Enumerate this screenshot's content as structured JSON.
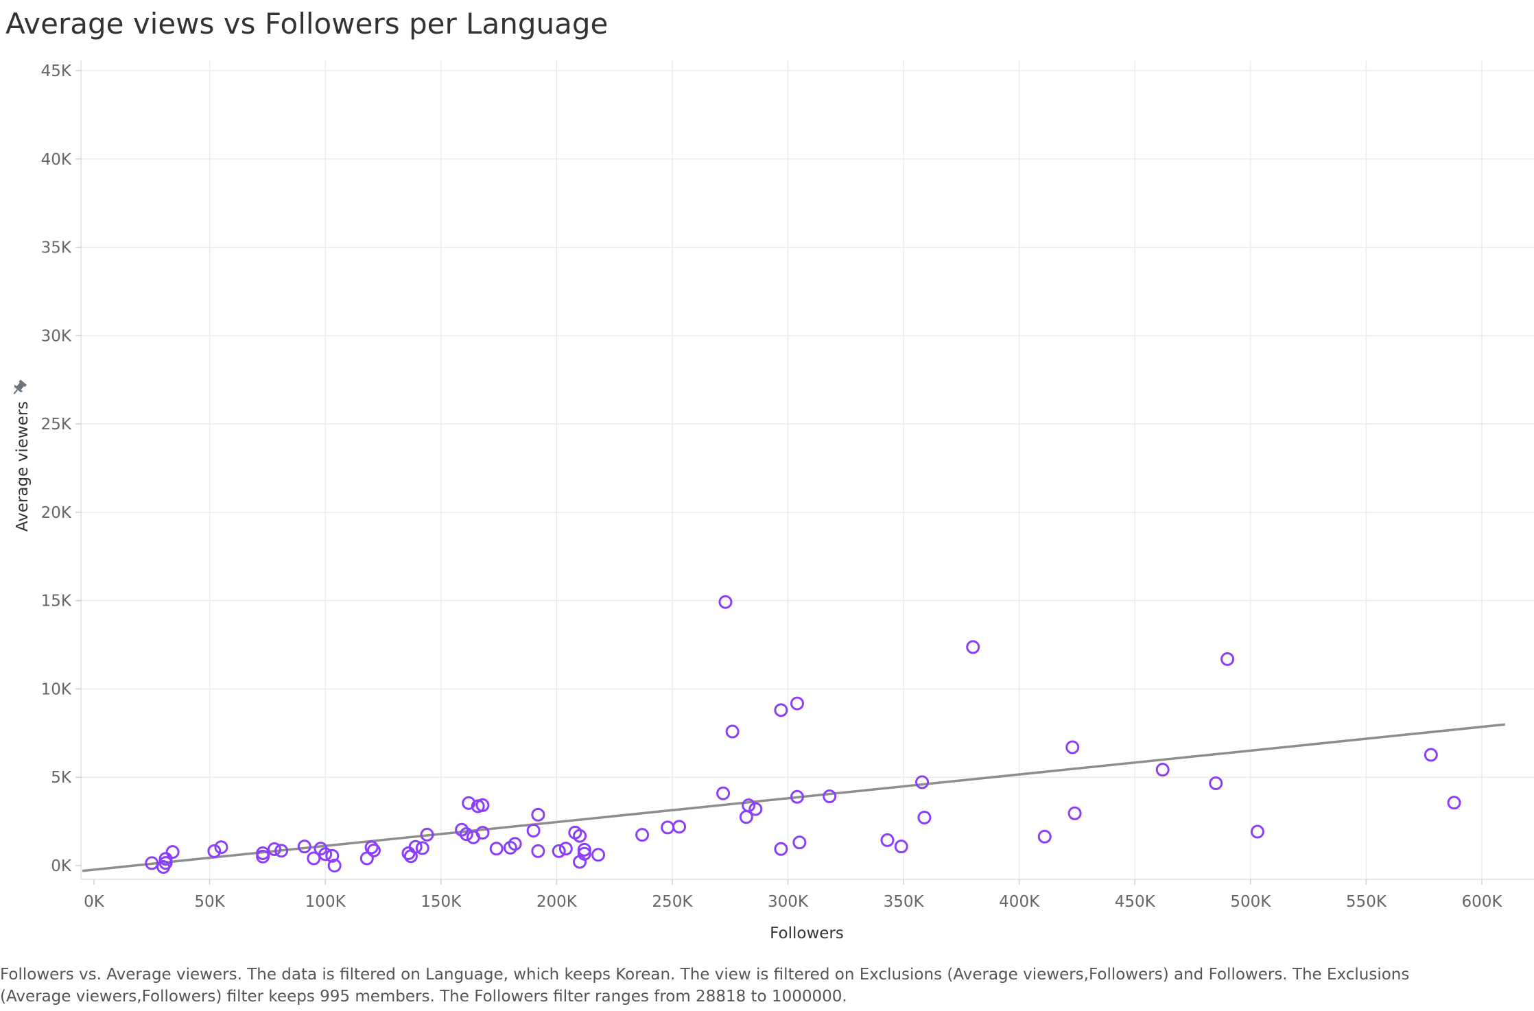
{
  "title": "Average views vs Followers per Language",
  "caption": "Followers vs. Average viewers. The data is filtered on Language, which keeps Korean. The view is filtered on Exclusions (Average viewers,Followers) and Followers. The Exclusions (Average viewers,Followers) filter keeps 995 members. The Followers filter ranges from 28818 to 1000000.",
  "pin_icon": "pin-icon",
  "colors": {
    "point": "#8A3FFC",
    "trend": "#8E8E8E",
    "grid": "#EBEBEB",
    "tick": "#666666"
  },
  "chart_data": {
    "type": "scatter",
    "title": "Average views vs Followers per Language",
    "xlabel": "Followers",
    "ylabel": "Average viewers",
    "xlim": [
      0,
      610000
    ],
    "ylim": [
      -700,
      45000
    ],
    "x_ticks": [
      0,
      50000,
      100000,
      150000,
      200000,
      250000,
      300000,
      350000,
      400000,
      450000,
      500000,
      550000,
      600000
    ],
    "x_tick_labels": [
      "0K",
      "50K",
      "100K",
      "150K",
      "200K",
      "250K",
      "300K",
      "350K",
      "400K",
      "450K",
      "500K",
      "550K",
      "600K"
    ],
    "y_ticks": [
      0,
      5000,
      10000,
      15000,
      20000,
      25000,
      30000,
      35000,
      40000,
      45000
    ],
    "y_tick_labels": [
      "0K",
      "5K",
      "10K",
      "15K",
      "20K",
      "25K",
      "30K",
      "35K",
      "40K",
      "45K"
    ],
    "grid": true,
    "trend_line": {
      "x": [
        -5000,
        610000
      ],
      "y": [
        -300,
        7990
      ]
    },
    "points": [
      {
        "x": 25000,
        "y": 140
      },
      {
        "x": 30000,
        "y": -80
      },
      {
        "x": 31000,
        "y": 380
      },
      {
        "x": 31000,
        "y": 150
      },
      {
        "x": 34000,
        "y": 770
      },
      {
        "x": 52000,
        "y": 820
      },
      {
        "x": 55000,
        "y": 1040
      },
      {
        "x": 73000,
        "y": 510
      },
      {
        "x": 73000,
        "y": 700
      },
      {
        "x": 78000,
        "y": 930
      },
      {
        "x": 81000,
        "y": 840
      },
      {
        "x": 91000,
        "y": 1080
      },
      {
        "x": 95000,
        "y": 410
      },
      {
        "x": 98000,
        "y": 960
      },
      {
        "x": 100000,
        "y": 650
      },
      {
        "x": 103000,
        "y": 550
      },
      {
        "x": 104000,
        "y": 0
      },
      {
        "x": 118000,
        "y": 410
      },
      {
        "x": 120000,
        "y": 1030
      },
      {
        "x": 121000,
        "y": 860
      },
      {
        "x": 136000,
        "y": 700
      },
      {
        "x": 137000,
        "y": 530
      },
      {
        "x": 139000,
        "y": 1060
      },
      {
        "x": 142000,
        "y": 990
      },
      {
        "x": 144000,
        "y": 1750
      },
      {
        "x": 159000,
        "y": 2030
      },
      {
        "x": 161000,
        "y": 1780
      },
      {
        "x": 162000,
        "y": 3540
      },
      {
        "x": 164000,
        "y": 1600
      },
      {
        "x": 166000,
        "y": 3360
      },
      {
        "x": 168000,
        "y": 3420
      },
      {
        "x": 168000,
        "y": 1860
      },
      {
        "x": 174000,
        "y": 960
      },
      {
        "x": 180000,
        "y": 1010
      },
      {
        "x": 182000,
        "y": 1230
      },
      {
        "x": 190000,
        "y": 1980
      },
      {
        "x": 192000,
        "y": 2880
      },
      {
        "x": 192000,
        "y": 820
      },
      {
        "x": 201000,
        "y": 820
      },
      {
        "x": 204000,
        "y": 960
      },
      {
        "x": 208000,
        "y": 1870
      },
      {
        "x": 210000,
        "y": 1680
      },
      {
        "x": 210000,
        "y": 210
      },
      {
        "x": 212000,
        "y": 900
      },
      {
        "x": 212000,
        "y": 670
      },
      {
        "x": 218000,
        "y": 610
      },
      {
        "x": 237000,
        "y": 1740
      },
      {
        "x": 248000,
        "y": 2160
      },
      {
        "x": 253000,
        "y": 2200
      },
      {
        "x": 272000,
        "y": 4090
      },
      {
        "x": 273000,
        "y": 14920
      },
      {
        "x": 276000,
        "y": 7590
      },
      {
        "x": 282000,
        "y": 2750
      },
      {
        "x": 283000,
        "y": 3410
      },
      {
        "x": 286000,
        "y": 3200
      },
      {
        "x": 297000,
        "y": 940
      },
      {
        "x": 297000,
        "y": 8800
      },
      {
        "x": 304000,
        "y": 9180
      },
      {
        "x": 304000,
        "y": 3890
      },
      {
        "x": 305000,
        "y": 1310
      },
      {
        "x": 318000,
        "y": 3920
      },
      {
        "x": 343000,
        "y": 1440
      },
      {
        "x": 349000,
        "y": 1080
      },
      {
        "x": 358000,
        "y": 4720
      },
      {
        "x": 359000,
        "y": 2720
      },
      {
        "x": 380000,
        "y": 12370
      },
      {
        "x": 411000,
        "y": 1640
      },
      {
        "x": 423000,
        "y": 6700
      },
      {
        "x": 424000,
        "y": 2960
      },
      {
        "x": 462000,
        "y": 5430
      },
      {
        "x": 485000,
        "y": 4660
      },
      {
        "x": 490000,
        "y": 11690
      },
      {
        "x": 503000,
        "y": 1920
      },
      {
        "x": 578000,
        "y": 6270
      },
      {
        "x": 588000,
        "y": 3560
      }
    ]
  }
}
